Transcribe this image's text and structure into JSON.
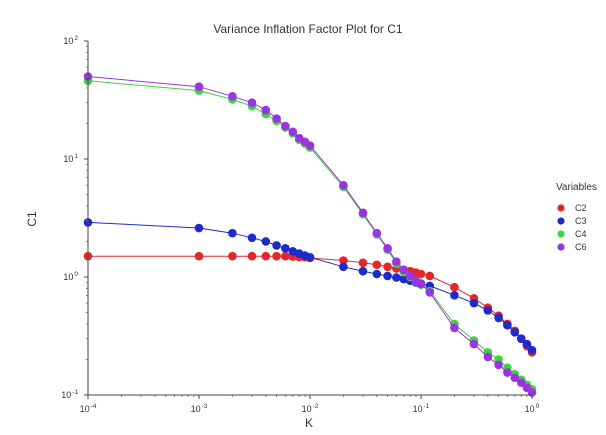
{
  "chart_data": {
    "type": "line",
    "title": "Variance Inflation Factor Plot for C1",
    "xlabel": "K",
    "ylabel": "C1",
    "xscale": "log",
    "yscale": "log",
    "xlim": [
      0.0001,
      1
    ],
    "ylim": [
      0.1,
      100
    ],
    "grid": false,
    "x_ticks": [
      {
        "base": "10",
        "exp": "-4"
      },
      {
        "base": "10",
        "exp": "-3"
      },
      {
        "base": "10",
        "exp": "-2"
      },
      {
        "base": "10",
        "exp": "-1"
      },
      {
        "base": "10",
        "exp": "0"
      }
    ],
    "y_ticks": [
      {
        "base": "10",
        "exp": "-1"
      },
      {
        "base": "10",
        "exp": "0"
      },
      {
        "base": "10",
        "exp": "1"
      },
      {
        "base": "10",
        "exp": "2"
      }
    ],
    "legend": {
      "title": "Variables",
      "position": "right"
    },
    "series": [
      {
        "name": "C2",
        "color": "#e3262b",
        "x": [
          0.0001,
          0.001,
          0.002,
          0.003,
          0.004,
          0.005,
          0.006,
          0.007,
          0.008,
          0.009,
          0.01,
          0.02,
          0.03,
          0.04,
          0.05,
          0.06,
          0.07,
          0.08,
          0.09,
          0.1,
          0.12,
          0.2,
          0.3,
          0.4,
          0.5,
          0.6,
          0.7,
          0.8,
          0.9,
          1.0
        ],
        "y": [
          1.5,
          1.5,
          1.5,
          1.5,
          1.5,
          1.5,
          1.5,
          1.49,
          1.48,
          1.47,
          1.45,
          1.38,
          1.32,
          1.27,
          1.22,
          1.18,
          1.15,
          1.12,
          1.09,
          1.06,
          1.02,
          0.82,
          0.66,
          0.55,
          0.47,
          0.4,
          0.35,
          0.3,
          0.26,
          0.23
        ]
      },
      {
        "name": "C3",
        "color": "#1f2bc8",
        "x": [
          0.0001,
          0.001,
          0.002,
          0.003,
          0.004,
          0.005,
          0.006,
          0.007,
          0.008,
          0.009,
          0.01,
          0.02,
          0.03,
          0.04,
          0.05,
          0.06,
          0.07,
          0.08,
          0.09,
          0.1,
          0.12,
          0.2,
          0.3,
          0.4,
          0.5,
          0.6,
          0.7,
          0.8,
          0.9,
          1.0
        ],
        "y": [
          2.9,
          2.6,
          2.35,
          2.15,
          2.0,
          1.85,
          1.75,
          1.65,
          1.58,
          1.52,
          1.47,
          1.22,
          1.12,
          1.06,
          1.02,
          0.99,
          0.96,
          0.93,
          0.9,
          0.88,
          0.84,
          0.7,
          0.6,
          0.52,
          0.45,
          0.39,
          0.34,
          0.3,
          0.27,
          0.24
        ]
      },
      {
        "name": "C4",
        "color": "#3fd43f",
        "x": [
          0.0001,
          0.001,
          0.002,
          0.003,
          0.004,
          0.005,
          0.006,
          0.007,
          0.008,
          0.009,
          0.01,
          0.02,
          0.03,
          0.04,
          0.05,
          0.06,
          0.07,
          0.08,
          0.09,
          0.1,
          0.12,
          0.2,
          0.3,
          0.4,
          0.5,
          0.6,
          0.7,
          0.8,
          0.9,
          1.0
        ],
        "y": [
          46,
          38,
          32,
          28,
          24,
          21,
          18.5,
          16.5,
          14.5,
          13.5,
          12.5,
          5.8,
          3.4,
          2.3,
          1.7,
          1.3,
          1.1,
          1.0,
          0.92,
          0.86,
          0.76,
          0.4,
          0.29,
          0.23,
          0.2,
          0.17,
          0.15,
          0.135,
          0.122,
          0.112
        ]
      },
      {
        "name": "C6",
        "color": "#9a34e0",
        "x": [
          0.0001,
          0.001,
          0.002,
          0.003,
          0.004,
          0.005,
          0.006,
          0.007,
          0.008,
          0.009,
          0.01,
          0.02,
          0.03,
          0.04,
          0.05,
          0.06,
          0.07,
          0.08,
          0.09,
          0.1,
          0.12,
          0.2,
          0.3,
          0.4,
          0.5,
          0.6,
          0.7,
          0.8,
          0.9,
          1.0
        ],
        "y": [
          50,
          41,
          34,
          30,
          26,
          22,
          19,
          17,
          15,
          14,
          13,
          6.0,
          3.5,
          2.35,
          1.75,
          1.35,
          1.15,
          1.02,
          0.93,
          0.87,
          0.74,
          0.37,
          0.27,
          0.21,
          0.18,
          0.155,
          0.14,
          0.127,
          0.115,
          0.105
        ]
      }
    ]
  }
}
